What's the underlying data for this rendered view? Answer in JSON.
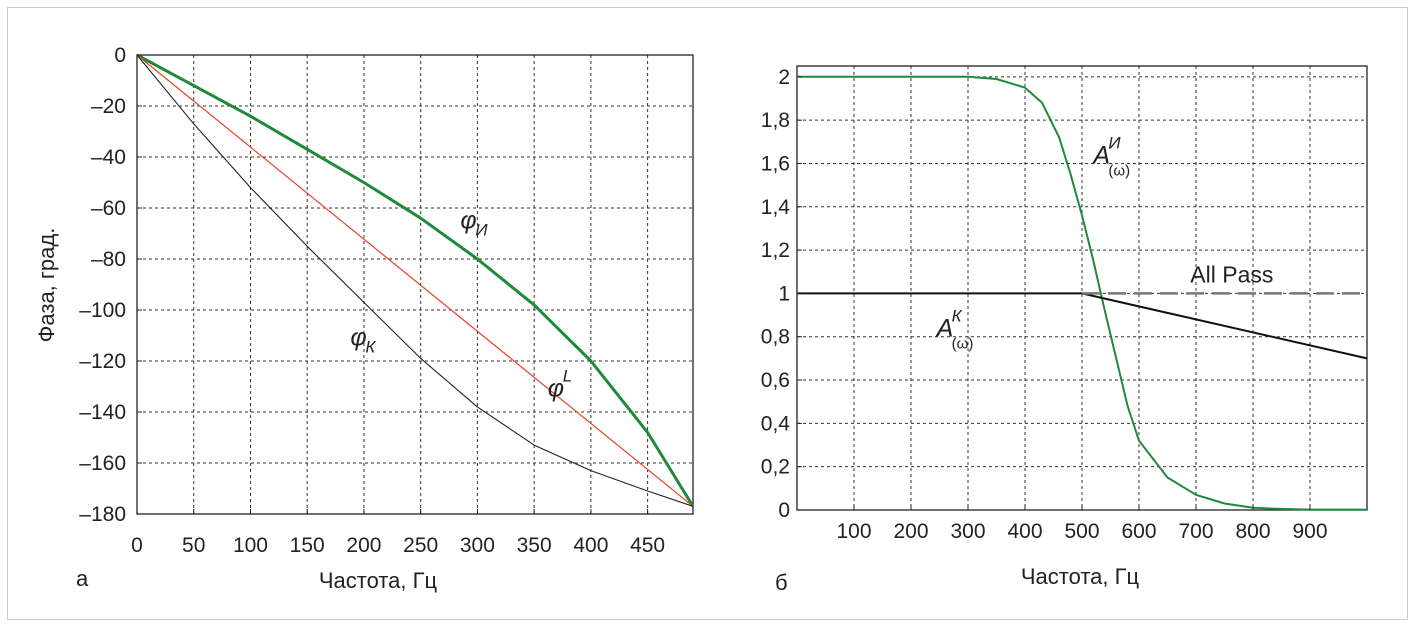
{
  "panels": [
    {
      "letter": "а",
      "chart_data": {
        "type": "line",
        "xlabel": "Частота, Гц",
        "ylabel": "Фаза, град.",
        "xlim": [
          0,
          490
        ],
        "ylim": [
          -180,
          0
        ],
        "xticks": [
          0,
          50,
          100,
          150,
          200,
          250,
          300,
          350,
          400,
          450
        ],
        "xtick_labels": [
          "0",
          "50",
          "100",
          "150",
          "200",
          "250",
          "300",
          "350",
          "400",
          "450"
        ],
        "yticks": [
          0,
          -20,
          -40,
          -60,
          -80,
          -100,
          -120,
          -140,
          -160,
          -180
        ],
        "ytick_labels": [
          "0",
          "–20",
          "–40",
          "–60",
          "–80",
          "–100",
          "–120",
          "–140",
          "–160",
          "–180"
        ],
        "grid": true,
        "series": [
          {
            "key": "phi_i",
            "color": "#1e8a3a",
            "stroke_width": 3,
            "x": [
              0,
              50,
              100,
              150,
              200,
              250,
              300,
              350,
              400,
              450,
              490
            ],
            "y": [
              0,
              -12,
              -24,
              -37,
              -50,
              -64,
              -80,
              -98,
              -120,
              -148,
              -177
            ]
          },
          {
            "key": "phi_l",
            "color": "#e8402a",
            "stroke_width": 1.2,
            "x": [
              0,
              490
            ],
            "y": [
              0,
              -177
            ]
          },
          {
            "key": "phi_k",
            "color": "#222222",
            "stroke_width": 1.1,
            "x": [
              0,
              50,
              100,
              150,
              200,
              250,
              300,
              350,
              400,
              450,
              490
            ],
            "y": [
              0,
              -27,
              -52,
              -75,
              -97,
              -119,
              -138,
              -153,
              -163,
              -171,
              -177
            ]
          }
        ],
        "annotations": [
          {
            "key": "phi_i_label",
            "base": "φ",
            "sub": "И",
            "x": 285,
            "y": -68
          },
          {
            "key": "phi_k_label",
            "base": "φ",
            "sub": "К",
            "x": 188,
            "y": -114
          },
          {
            "key": "phi_l_label",
            "base": "φ",
            "sup": "L",
            "x": 362,
            "y": -134
          }
        ]
      }
    },
    {
      "letter": "б",
      "chart_data": {
        "type": "line",
        "xlabel": "Частота, Гц",
        "ylabel": "",
        "xlim": [
          0,
          1000
        ],
        "ylim": [
          0,
          2.05
        ],
        "xticks": [
          100,
          200,
          300,
          400,
          500,
          600,
          700,
          800,
          900
        ],
        "xtick_labels": [
          "100",
          "200",
          "300",
          "400",
          "500",
          "600",
          "700",
          "800",
          "900"
        ],
        "yticks": [
          0,
          0.2,
          0.4,
          0.6,
          0.8,
          1,
          1.2,
          1.4,
          1.6,
          1.8,
          2
        ],
        "ytick_labels": [
          "0",
          "0,2",
          "0,4",
          "0,6",
          "0,8",
          "1",
          "1,2",
          "1,4",
          "1,6",
          "1,8",
          "2"
        ],
        "grid": true,
        "series": [
          {
            "key": "a_i",
            "color": "#1e8a3a",
            "stroke_width": 2,
            "x": [
              0,
              300,
              350,
              400,
              430,
              460,
              480,
              500,
              520,
              540,
              560,
              580,
              600,
              650,
              700,
              750,
              800,
              850,
              900,
              1000
            ],
            "y": [
              2,
              2,
              1.99,
              1.95,
              1.88,
              1.72,
              1.55,
              1.36,
              1.15,
              0.92,
              0.7,
              0.48,
              0.32,
              0.15,
              0.07,
              0.03,
              0.01,
              0.005,
              0.002,
              0.002
            ]
          },
          {
            "key": "a_k",
            "color": "#111111",
            "stroke_width": 2,
            "x": [
              0,
              500,
              1000
            ],
            "y": [
              1,
              1,
              0.7
            ]
          },
          {
            "key": "all_pass",
            "color": "#777777",
            "stroke_width": 2.5,
            "dashed": true,
            "x": [
              500,
              1000
            ],
            "y": [
              1,
              1
            ]
          }
        ],
        "annotations": [
          {
            "key": "a_i_label",
            "base": "A",
            "sup": "И",
            "sub": "(ω)",
            "x": 520,
            "y": 1.6
          },
          {
            "key": "a_k_label",
            "base": "A",
            "sup": "К",
            "sub": "(ω)",
            "x": 245,
            "y": 0.8
          },
          {
            "key": "all_pass_label",
            "text": "All Pass",
            "x": 690,
            "y": 1.05
          }
        ]
      }
    }
  ]
}
